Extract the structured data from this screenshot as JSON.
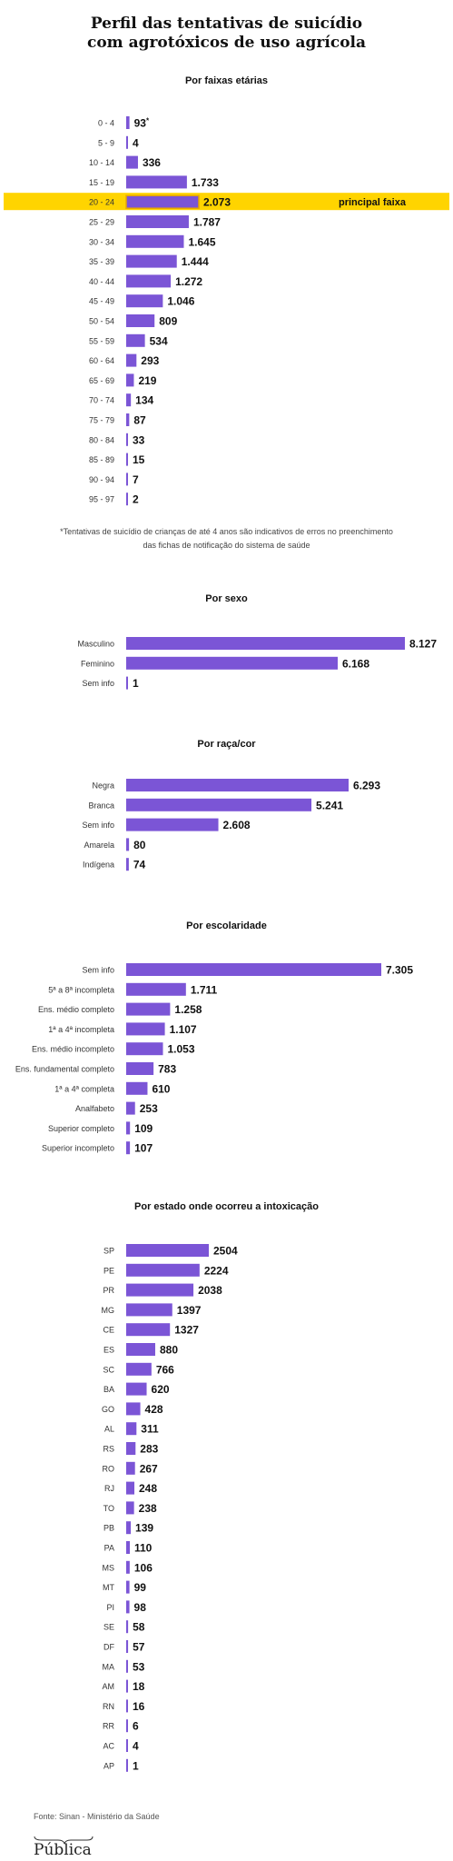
{
  "title": {
    "line1": "Perfil das tentativas de suicídio",
    "line2": "com agrotóxicos de uso agrícola"
  },
  "colors": {
    "bar": "#7b55d6",
    "highlight": "#ffd400",
    "text": "#222222",
    "highlight_bar": "#e8a800"
  },
  "footer": {
    "source": "Fonte: Sinan - Ministério da Saúde",
    "brand": "Pública"
  },
  "chart_data": [
    {
      "type": "bar",
      "orientation": "horizontal",
      "title": "Por faixas etárias",
      "categories": [
        "0 - 4",
        "5 - 9",
        "10 - 14",
        "15 - 19",
        "20 - 24",
        "25 - 29",
        "30 - 34",
        "35 - 39",
        "40 - 44",
        "45 - 49",
        "50 - 54",
        "55 - 59",
        "60 - 64",
        "65 - 69",
        "70 - 74",
        "75 - 79",
        "80 - 84",
        "85 - 89",
        "90 - 94",
        "95 - 97"
      ],
      "values": [
        93,
        4,
        336,
        1733,
        2073,
        1787,
        1645,
        1444,
        1272,
        1046,
        809,
        534,
        293,
        219,
        134,
        87,
        33,
        15,
        7,
        2
      ],
      "value_labels": [
        "93",
        "4",
        "336",
        "1.733",
        "2.073",
        "1.787",
        "1.645",
        "1.444",
        "1.272",
        "1.046",
        "809",
        "534",
        "293",
        "219",
        "134",
        "87",
        "33",
        "15",
        "7",
        "2"
      ],
      "value_label_mark": "*",
      "highlight": {
        "category": "20 - 24",
        "label": "principal faixa"
      },
      "note": "*Tentativas de suicídio de crianças de até 4 anos são indicativos de erros no preenchimento das fichas de notificação do sistema de saúde"
    },
    {
      "type": "bar",
      "orientation": "horizontal",
      "title": "Por sexo",
      "categories": [
        "Masculino",
        "Feminino",
        "Sem info"
      ],
      "values": [
        8127,
        6168,
        1
      ],
      "value_labels": [
        "8.127",
        "6.168",
        "1"
      ]
    },
    {
      "type": "bar",
      "orientation": "horizontal",
      "title": "Por raça/cor",
      "categories": [
        "Negra",
        "Branca",
        "Sem info",
        "Amarela",
        "Indígena"
      ],
      "values": [
        6293,
        5241,
        2608,
        80,
        74
      ],
      "value_labels": [
        "6.293",
        "5.241",
        "2.608",
        "80",
        "74"
      ]
    },
    {
      "type": "bar",
      "orientation": "horizontal",
      "title": "Por escolaridade",
      "categories": [
        "Sem info",
        "5ª a 8ª incompleta",
        "Ens. médio completo",
        "1ª a 4ª incompleta",
        "Ens. médio incompleto",
        "Ens. fundamental completo",
        "1ª a 4ª completa",
        "Analfabeto",
        "Superior completo",
        "Superior incompleto"
      ],
      "values": [
        7305,
        1711,
        1258,
        1107,
        1053,
        783,
        610,
        253,
        109,
        107
      ],
      "value_labels": [
        "7.305",
        "1.711",
        "1.258",
        "1.107",
        "1.053",
        "783",
        "610",
        "253",
        "109",
        "107"
      ]
    },
    {
      "type": "bar",
      "orientation": "horizontal",
      "title": "Por estado onde ocorreu a intoxicação",
      "categories": [
        "SP",
        "PE",
        "PR",
        "MG",
        "CE",
        "ES",
        "SC",
        "BA",
        "GO",
        "AL",
        "RS",
        "RO",
        "RJ",
        "TO",
        "PB",
        "PA",
        "MS",
        "MT",
        "PI",
        "SE",
        "DF",
        "MA",
        "AM",
        "RN",
        "RR",
        "AC",
        "AP"
      ],
      "values": [
        2504,
        2224,
        2038,
        1397,
        1327,
        880,
        766,
        620,
        428,
        311,
        283,
        267,
        248,
        238,
        139,
        110,
        106,
        99,
        98,
        58,
        57,
        53,
        18,
        16,
        6,
        4,
        1
      ],
      "value_labels": [
        "2504",
        "2224",
        "2038",
        "1397",
        "1327",
        "880",
        "766",
        "620",
        "428",
        "311",
        "283",
        "267",
        "248",
        "238",
        "139",
        "110",
        "106",
        "99",
        "98",
        "58",
        "57",
        "53",
        "18",
        "16",
        "6",
        "4",
        "1"
      ]
    }
  ]
}
